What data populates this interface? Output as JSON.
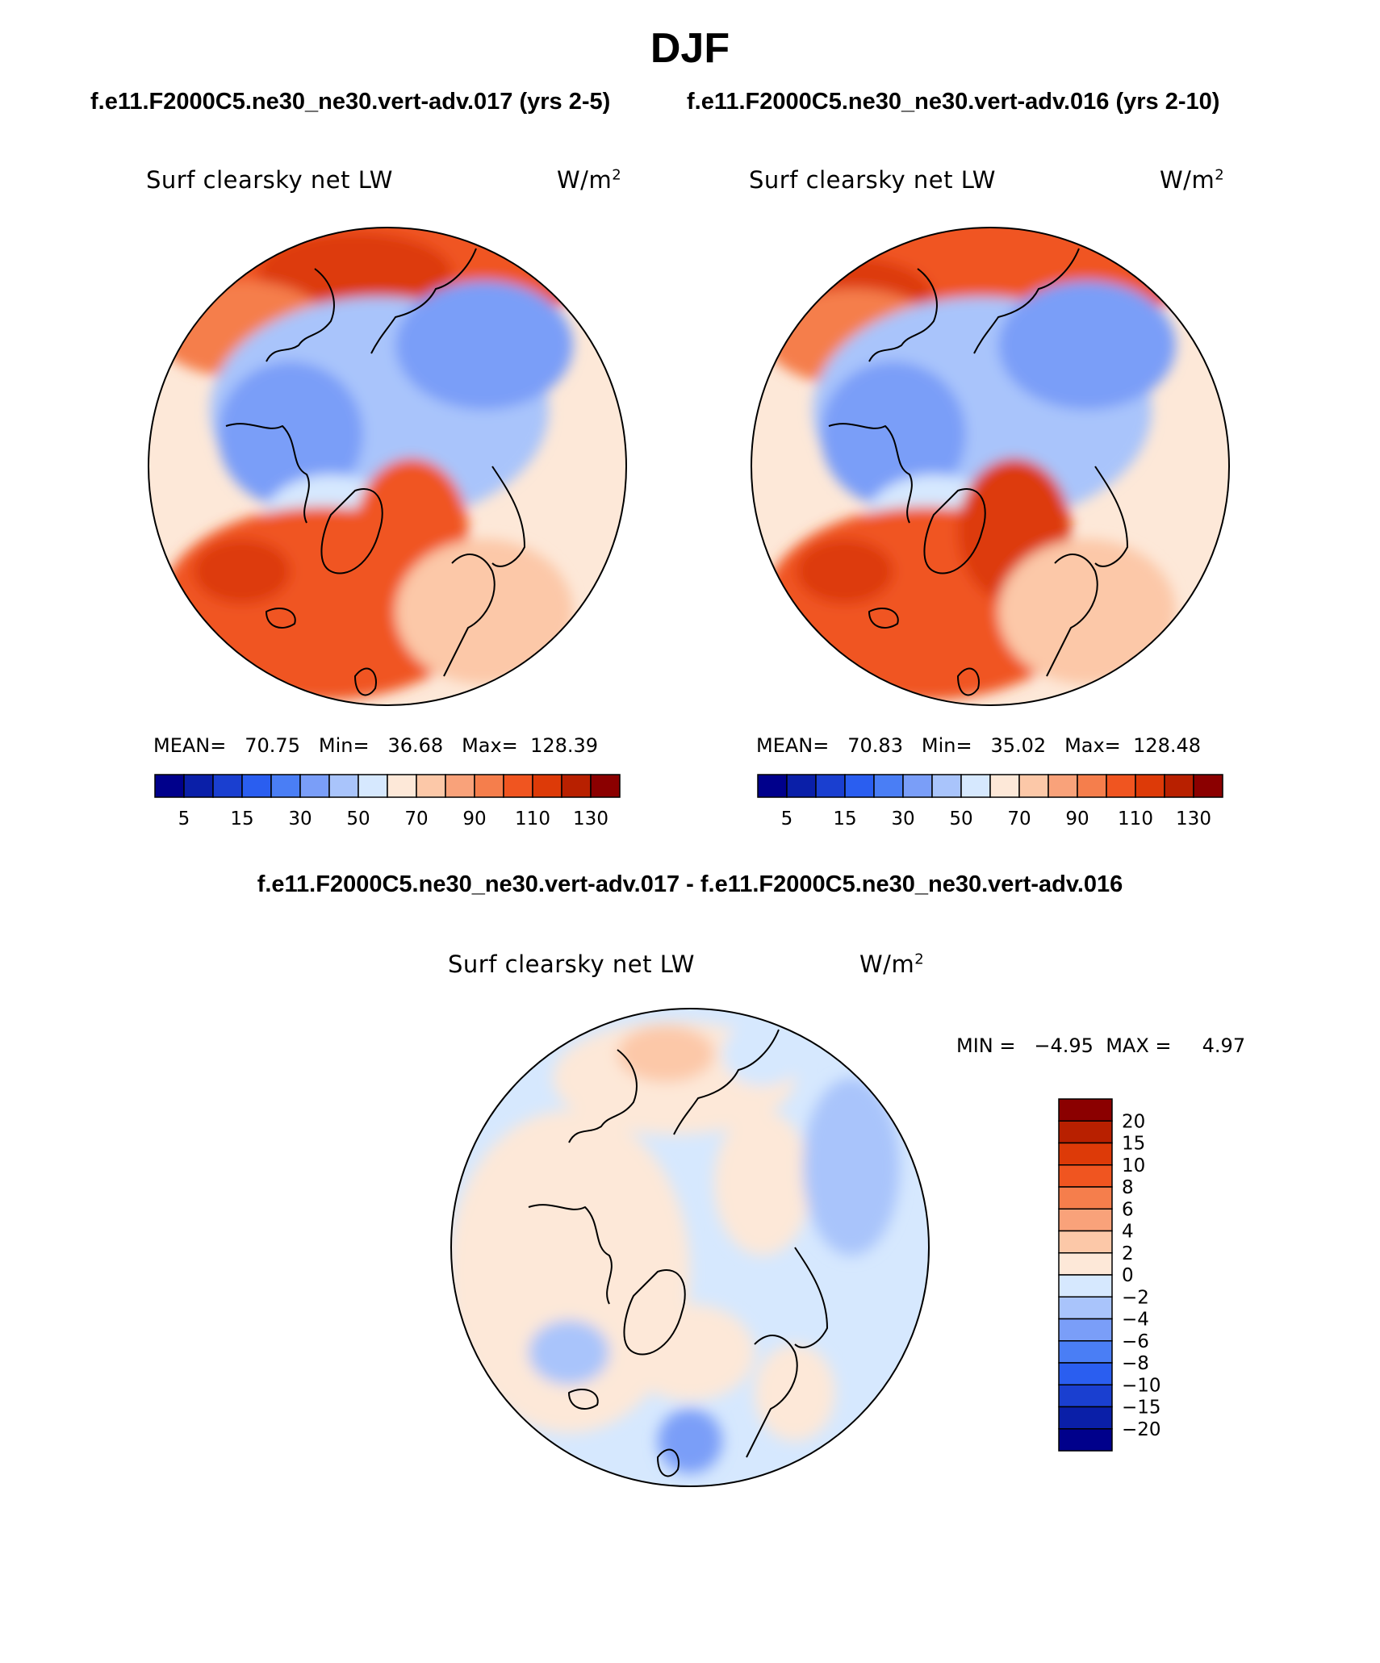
{
  "title": "DJF",
  "subtitles": [
    "f.e11.F2000C5.ne30_ne30.vert-adv.017 (yrs 2-5)",
    "f.e11.F2000C5.ne30_ne30.vert-adv.016 (yrs 2-10)"
  ],
  "diff_title": "f.e11.F2000C5.ne30_ne30.vert-adv.017 - f.e11.F2000C5.ne30_ne30.vert-adv.016",
  "chart_data": [
    {
      "type": "heatmap",
      "projection": "north polar stereographic",
      "variable": "Surf clearsky net LW",
      "units_base": "W/m",
      "units_exp": "2",
      "stats": {
        "mean_label": "MEAN=",
        "mean": "70.75",
        "min_label": "Min=",
        "min": "36.68",
        "max_label": "Max=",
        "max": "128.39"
      },
      "colorbar": {
        "orientation": "horizontal",
        "tick_labels": [
          "5",
          "15",
          "30",
          "50",
          "70",
          "90",
          "110",
          "130"
        ],
        "colors": [
          "#00008b",
          "#0a1fa8",
          "#1a3fd0",
          "#2a5ef0",
          "#4a7ef5",
          "#7a9ef8",
          "#a9c4fb",
          "#d6e8fe",
          "#fde8d8",
          "#fcc8a8",
          "#f9a27a",
          "#f57e4c",
          "#f05520",
          "#dd3a08",
          "#b82000",
          "#8b0000"
        ]
      }
    },
    {
      "type": "heatmap",
      "projection": "north polar stereographic",
      "variable": "Surf clearsky net LW",
      "units_base": "W/m",
      "units_exp": "2",
      "stats": {
        "mean_label": "MEAN=",
        "mean": "70.83",
        "min_label": "Min=",
        "min": "35.02",
        "max_label": "Max=",
        "max": "128.48"
      },
      "colorbar": {
        "orientation": "horizontal",
        "tick_labels": [
          "5",
          "15",
          "30",
          "50",
          "70",
          "90",
          "110",
          "130"
        ],
        "colors": [
          "#00008b",
          "#0a1fa8",
          "#1a3fd0",
          "#2a5ef0",
          "#4a7ef5",
          "#7a9ef8",
          "#a9c4fb",
          "#d6e8fe",
          "#fde8d8",
          "#fcc8a8",
          "#f9a27a",
          "#f57e4c",
          "#f05520",
          "#dd3a08",
          "#b82000",
          "#8b0000"
        ]
      }
    },
    {
      "type": "heatmap",
      "projection": "north polar stereographic",
      "variable": "Surf clearsky net LW",
      "units_base": "W/m",
      "units_exp": "2",
      "stats": {
        "min_label": "MIN =",
        "min": "−4.95",
        "max_label": "MAX =",
        "max": "4.97"
      },
      "colorbar": {
        "orientation": "vertical",
        "tick_labels": [
          "20",
          "15",
          "10",
          "8",
          "6",
          "4",
          "2",
          "0",
          "−2",
          "−4",
          "−6",
          "−8",
          "−10",
          "−15",
          "−20"
        ],
        "colors": [
          "#8b0000",
          "#b82000",
          "#dd3a08",
          "#f05520",
          "#f57e4c",
          "#f9a27a",
          "#fcc8a8",
          "#fde8d8",
          "#d6e8fe",
          "#a9c4fb",
          "#7a9ef8",
          "#4a7ef5",
          "#2a5ef0",
          "#1a3fd0",
          "#0a1fa8",
          "#00008b"
        ]
      }
    }
  ]
}
